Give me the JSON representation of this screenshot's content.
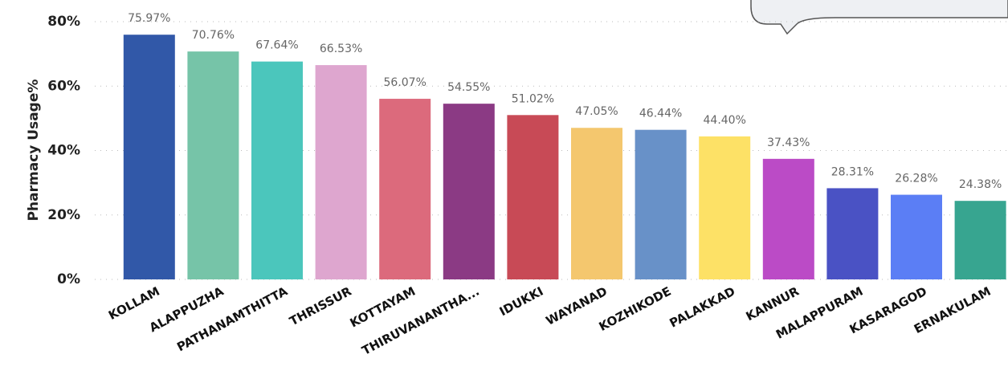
{
  "chart_data": {
    "type": "bar",
    "y_label": "Pharmacy Usage%",
    "categories": [
      "KOLLAM",
      "ALAPPUZHA",
      "PATHANAMTHITTA",
      "THRISSUR",
      "KOTTAYAM",
      "THIRUVANANTHA...",
      "IDUKKI",
      "WAYANAD",
      "KOZHIKODE",
      "PALAKKAD",
      "KANNUR",
      "MALAPPURAM",
      "KASARAGOD",
      "ERNAKULAM"
    ],
    "values": [
      75.97,
      70.76,
      67.64,
      66.53,
      56.07,
      54.55,
      51.02,
      47.05,
      46.44,
      44.4,
      37.43,
      28.31,
      26.28,
      24.38
    ],
    "value_labels": [
      "75.97%",
      "70.76%",
      "67.64%",
      "66.53%",
      "56.07%",
      "54.55%",
      "51.02%",
      "47.05%",
      "46.44%",
      "44.40%",
      "37.43%",
      "28.31%",
      "26.28%",
      "24.38%"
    ],
    "colors": [
      "#3158a8",
      "#76c4a8",
      "#4bc6bc",
      "#dea6cf",
      "#dc6a7c",
      "#8b3a84",
      "#c84a56",
      "#f4c76e",
      "#6891c8",
      "#fde166",
      "#bb4bc6",
      "#4a52c4",
      "#5b7ef5",
      "#37a590"
    ],
    "ylim": [
      0,
      85
    ],
    "yticks": [
      {
        "value": 0,
        "label": "0%"
      },
      {
        "value": 20,
        "label": "20%"
      },
      {
        "value": 40,
        "label": "40%"
      },
      {
        "value": 60,
        "label": "60%"
      },
      {
        "value": 80,
        "label": "80%"
      }
    ],
    "grid": true
  }
}
